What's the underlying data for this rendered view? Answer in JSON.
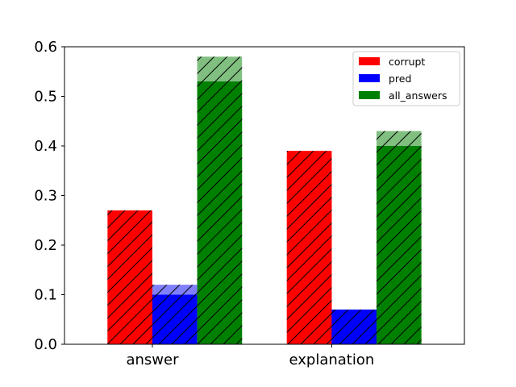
{
  "chart_data": {
    "type": "bar",
    "categories": [
      "answer",
      "explanation"
    ],
    "series": [
      {
        "name": "corrupt",
        "color": "#ff0000",
        "light_color": "#ff0000",
        "values": [
          0.27,
          0.39
        ],
        "hatched_values": [
          0.2,
          0.38
        ]
      },
      {
        "name": "pred",
        "color": "#0000ff",
        "light_color": "#8080ff",
        "values": [
          0.12,
          0.07
        ],
        "hatched_values": [
          0.1,
          0.07
        ]
      },
      {
        "name": "all_answers",
        "color": "#008000",
        "light_color": "#80bf80",
        "values": [
          0.58,
          0.43
        ],
        "hatched_values": [
          0.53,
          0.4
        ]
      }
    ],
    "ylim": [
      0,
      0.6
    ],
    "yticks": [
      "0.0",
      "0.1",
      "0.2",
      "0.3",
      "0.4",
      "0.5",
      "0.6"
    ],
    "grid": false,
    "legend": "top-right",
    "title": "",
    "xlabel": "",
    "ylabel": ""
  }
}
